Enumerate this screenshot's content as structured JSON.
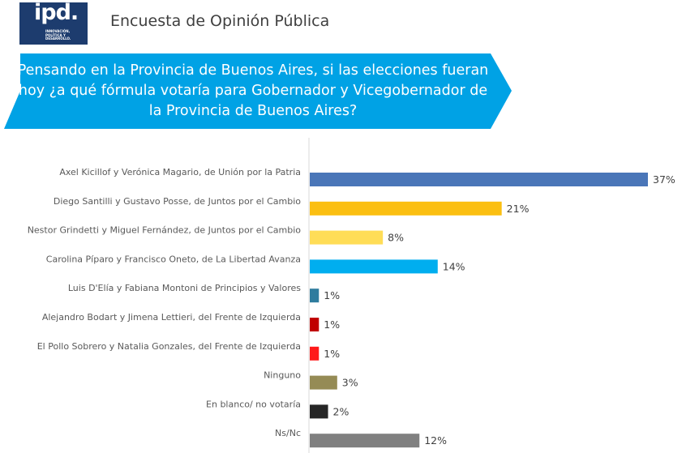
{
  "header": {
    "logo_text": "ipd.",
    "logo_subtext": "INNOVACIÓN, POLÍTICA Y DESARROLLO.",
    "title": "Encuesta de Opinión Pública"
  },
  "question": {
    "text": "Pensando en la Provincia de Buenos Aires, si las elecciones fueran hoy ¿a qué fórmula votaría para Gobernador y Vicegobernador de la Provincia de Buenos Aires?"
  },
  "colors": {
    "banner": "#00a2e5",
    "logo_bg": "#1d3c6e"
  },
  "chart_data": {
    "type": "bar",
    "orientation": "horizontal",
    "unit": "%",
    "categories": [
      "Axel Kicillof y Verónica Magario, de Unión por la Patria",
      "Diego Santilli y Gustavo Posse, de Juntos por el Cambio",
      "Nestor Grindetti y Miguel Fernández, de Juntos por el Cambio",
      "Carolina Píparo y Francisco Oneto, de La Libertad Avanza",
      "Luis D'Elía y Fabiana Montoni de Principios y Valores",
      "Alejandro Bodart y Jimena Lettieri, del Frente de Izquierda",
      "El Pollo Sobrero y Natalia Gonzales, del Frente de Izquierda",
      "Ninguno",
      "En blanco/ no votaría",
      "Ns/Nc"
    ],
    "values": [
      37,
      21,
      8,
      14,
      1,
      1,
      1,
      3,
      2,
      12
    ],
    "value_labels": [
      "37%",
      "21%",
      "8%",
      "14%",
      "1%",
      "1%",
      "1%",
      "3%",
      "2%",
      "12%"
    ],
    "colors": [
      "#4a76b8",
      "#fbbf12",
      "#ffdd57",
      "#00aeef",
      "#2e7c9e",
      "#c00000",
      "#ff1a1a",
      "#958b55",
      "#262626",
      "#808080"
    ],
    "xlim": [
      0,
      37
    ],
    "grid": false,
    "legend": "none"
  }
}
